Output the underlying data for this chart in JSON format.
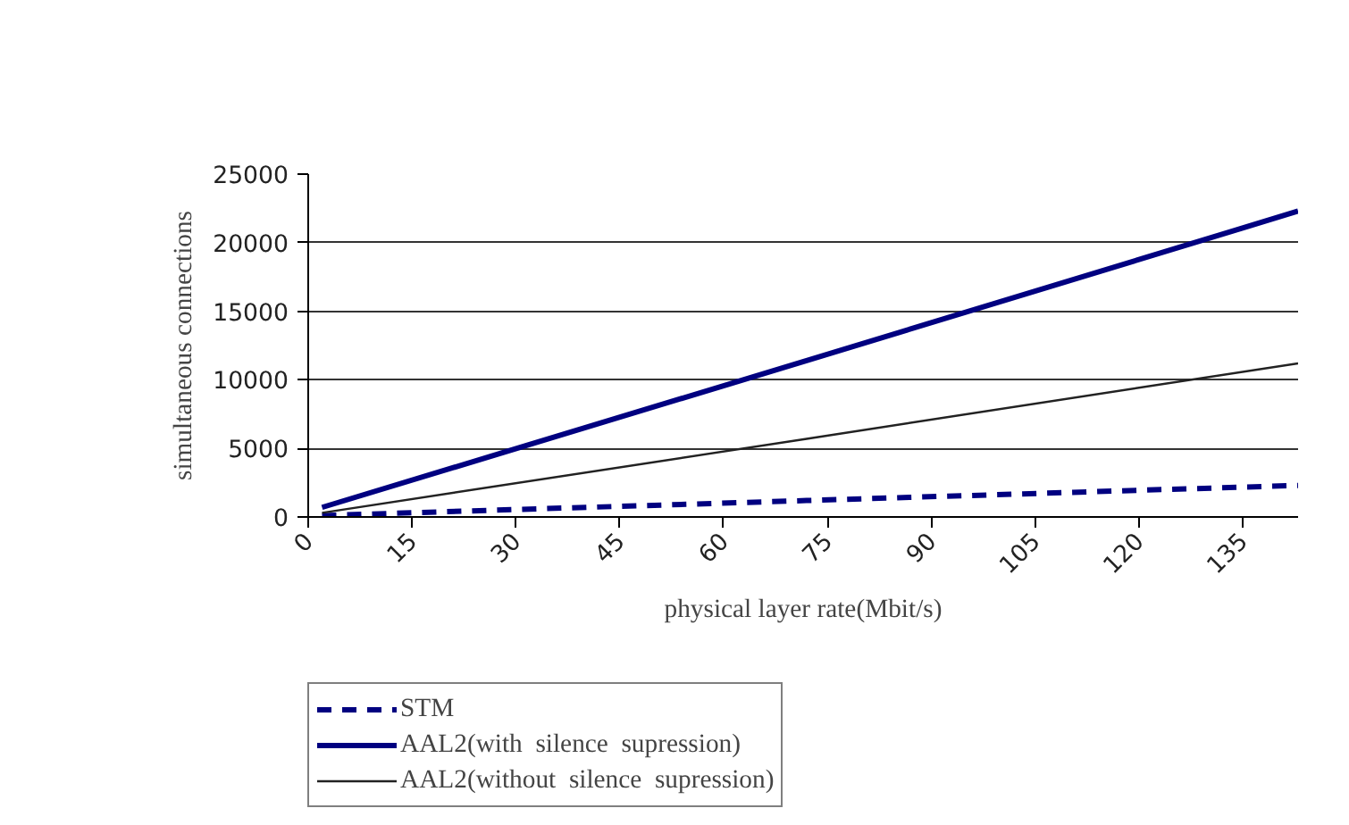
{
  "chart_data": {
    "type": "line",
    "xlabel": "physical layer rate(Mbit/s)",
    "ylabel": "simultaneous connections",
    "xlim": [
      0,
      143
    ],
    "xticks": [
      0,
      15,
      30,
      45,
      60,
      75,
      90,
      105,
      120,
      135
    ],
    "ylim": [
      0,
      25000
    ],
    "yticks": [
      0,
      5000,
      10000,
      15000,
      20000,
      25000
    ],
    "grid": "y",
    "legend": "bottom left",
    "marker": "none",
    "series": [
      {
        "name": "STM",
        "color": "#000080",
        "line_style": "dashed",
        "x": [
          2,
          72,
          143
        ],
        "values": [
          100,
          1200,
          2300
        ]
      },
      {
        "name": "AAL2(with  silence  supression)",
        "color": "#000080",
        "line_style": "solid",
        "x": [
          2,
          72,
          143
        ],
        "values": [
          700,
          11400,
          22300
        ]
      },
      {
        "name": "AAL2(without  silence  supression)",
        "color": "#222222",
        "line_style": "solid",
        "x": [
          2,
          72,
          143
        ],
        "values": [
          300,
          5700,
          11200
        ]
      }
    ]
  }
}
